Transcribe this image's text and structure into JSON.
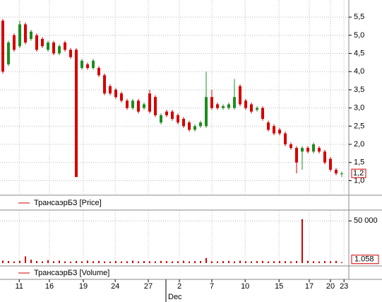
{
  "chart_data": [
    {
      "type": "candlestick",
      "legend": "ТрансаэрБЗ [Price]",
      "up_color": "#1e8c1e",
      "down_color": "#d40000",
      "grid": true,
      "open": [
        5.4,
        4.2,
        5.0,
        4.7,
        5.3,
        4.9,
        5.0,
        4.9,
        4.6,
        4.8,
        4.5,
        4.8,
        4.6,
        4.6,
        4.1,
        4.2,
        4.1,
        4.1,
        3.9,
        3.6,
        3.5,
        3.4,
        3.2,
        3.0,
        3.2,
        3.0,
        3.4,
        3.3,
        2.6,
        2.9,
        2.9,
        2.8,
        2.7,
        2.6,
        2.4,
        2.5,
        2.5,
        3.3,
        3.1,
        3.0,
        3.0,
        3.0,
        3.6,
        3.2,
        3.1,
        2.95,
        3.0,
        2.6,
        2.5,
        2.4,
        2.3,
        2.0,
        1.9,
        1.8,
        1.9,
        1.8,
        1.9,
        1.8,
        1.6,
        1.3,
        1.2
      ],
      "high": [
        5.45,
        4.85,
        5.05,
        5.4,
        5.35,
        5.15,
        5.05,
        4.95,
        4.85,
        4.85,
        4.75,
        4.85,
        4.65,
        4.65,
        4.35,
        4.25,
        4.35,
        4.15,
        3.95,
        3.65,
        3.55,
        3.45,
        3.25,
        3.25,
        3.25,
        3.15,
        3.5,
        3.35,
        2.85,
        2.95,
        2.95,
        2.85,
        2.75,
        2.65,
        2.55,
        2.65,
        4.0,
        3.5,
        3.15,
        3.1,
        3.15,
        3.8,
        3.65,
        3.25,
        3.15,
        3.05,
        3.05,
        2.65,
        2.55,
        2.45,
        2.35,
        2.05,
        1.95,
        1.95,
        1.95,
        2.05,
        1.95,
        1.85,
        1.65,
        1.35,
        1.25
      ],
      "low": [
        3.95,
        4.15,
        4.55,
        4.65,
        4.75,
        4.85,
        4.55,
        4.65,
        4.55,
        4.45,
        4.45,
        4.55,
        4.35,
        1.1,
        4.05,
        4.05,
        4.05,
        3.85,
        3.35,
        3.35,
        3.25,
        3.15,
        2.95,
        2.95,
        2.85,
        2.95,
        2.85,
        2.75,
        2.55,
        2.75,
        2.65,
        2.55,
        2.45,
        2.35,
        2.35,
        2.45,
        2.45,
        2.95,
        2.95,
        2.95,
        2.95,
        2.95,
        3.05,
        2.95,
        2.85,
        2.9,
        2.65,
        2.35,
        2.25,
        2.25,
        1.95,
        1.85,
        1.2,
        1.3,
        1.75,
        1.75,
        1.75,
        1.45,
        1.25,
        1.15,
        1.1
      ],
      "close": [
        4.0,
        4.8,
        4.6,
        5.3,
        4.8,
        5.1,
        4.6,
        4.7,
        4.8,
        4.5,
        4.7,
        4.6,
        4.4,
        1.1,
        4.3,
        4.1,
        4.3,
        3.9,
        3.4,
        3.4,
        3.3,
        3.2,
        3.0,
        3.2,
        2.9,
        3.1,
        2.9,
        2.8,
        2.8,
        2.8,
        2.7,
        2.6,
        2.5,
        2.4,
        2.5,
        2.6,
        3.3,
        3.0,
        3.0,
        3.05,
        3.1,
        3.3,
        3.1,
        3.0,
        2.9,
        3.0,
        2.7,
        2.4,
        2.3,
        2.3,
        2.0,
        1.9,
        1.5,
        1.9,
        1.8,
        2.0,
        1.8,
        1.5,
        1.3,
        1.2,
        1.2
      ],
      "last_close_label": "1,2",
      "xlim": [
        -0.5,
        61.25
      ],
      "ylim": [
        0.6,
        5.97
      ],
      "yticks": [
        {
          "value": 1.0,
          "label": "1,0"
        },
        {
          "value": 1.5,
          "label": "1,5"
        },
        {
          "value": 2.0,
          "label": "2,0"
        },
        {
          "value": 2.5,
          "label": "2,5"
        },
        {
          "value": 3.0,
          "label": "3,0"
        },
        {
          "value": 3.5,
          "label": "3,5"
        },
        {
          "value": 4.0,
          "label": "4,0"
        },
        {
          "value": 4.5,
          "label": "4,5"
        },
        {
          "value": 5.0,
          "label": "5,0"
        },
        {
          "value": 5.5,
          "label": "5,5"
        }
      ]
    },
    {
      "type": "bar",
      "legend": "ТрансаэрБЗ [Volume]",
      "color": "#d40000",
      "grid": true,
      "values": [
        3000,
        2500,
        2000,
        2800,
        8000,
        4000,
        2500,
        2000,
        3500,
        2200,
        3000,
        2000,
        1800,
        2500,
        2000,
        3000,
        2200,
        2600,
        2000,
        1800,
        2400,
        2000,
        2200,
        3000,
        2000,
        2500,
        2200,
        2000,
        2600,
        2400,
        2000,
        2200,
        2800,
        2000,
        2300,
        2500,
        6000,
        2200,
        2000,
        2400,
        2600,
        2000,
        2800,
        2200,
        2000,
        2400,
        2600,
        2000,
        2200,
        2500,
        2300,
        2000,
        2600,
        52000,
        2800,
        2200,
        2000,
        2400,
        2200,
        2600,
        1058
      ],
      "last_value_label": "1.058",
      "xlim": [
        -0.5,
        61.25
      ],
      "ylim": [
        0,
        62000
      ],
      "yticks": [
        {
          "value": 50000,
          "label": "50 000"
        }
      ],
      "xticks": [
        {
          "value": 2.9,
          "label": "11"
        },
        {
          "value": 8.25,
          "label": "16"
        },
        {
          "value": 14.25,
          "label": "19"
        },
        {
          "value": 19.9,
          "label": "24"
        },
        {
          "value": 25.75,
          "label": "27"
        },
        {
          "value": 31.25,
          "label": "2"
        },
        {
          "value": 37,
          "label": "7"
        },
        {
          "value": 42.9,
          "label": "10"
        },
        {
          "value": 48.9,
          "label": "15"
        },
        {
          "value": 54.25,
          "label": "17"
        },
        {
          "value": 58,
          "label": "20"
        },
        {
          "value": 60.4,
          "label": "23"
        }
      ],
      "month_label": "Dec"
    }
  ]
}
